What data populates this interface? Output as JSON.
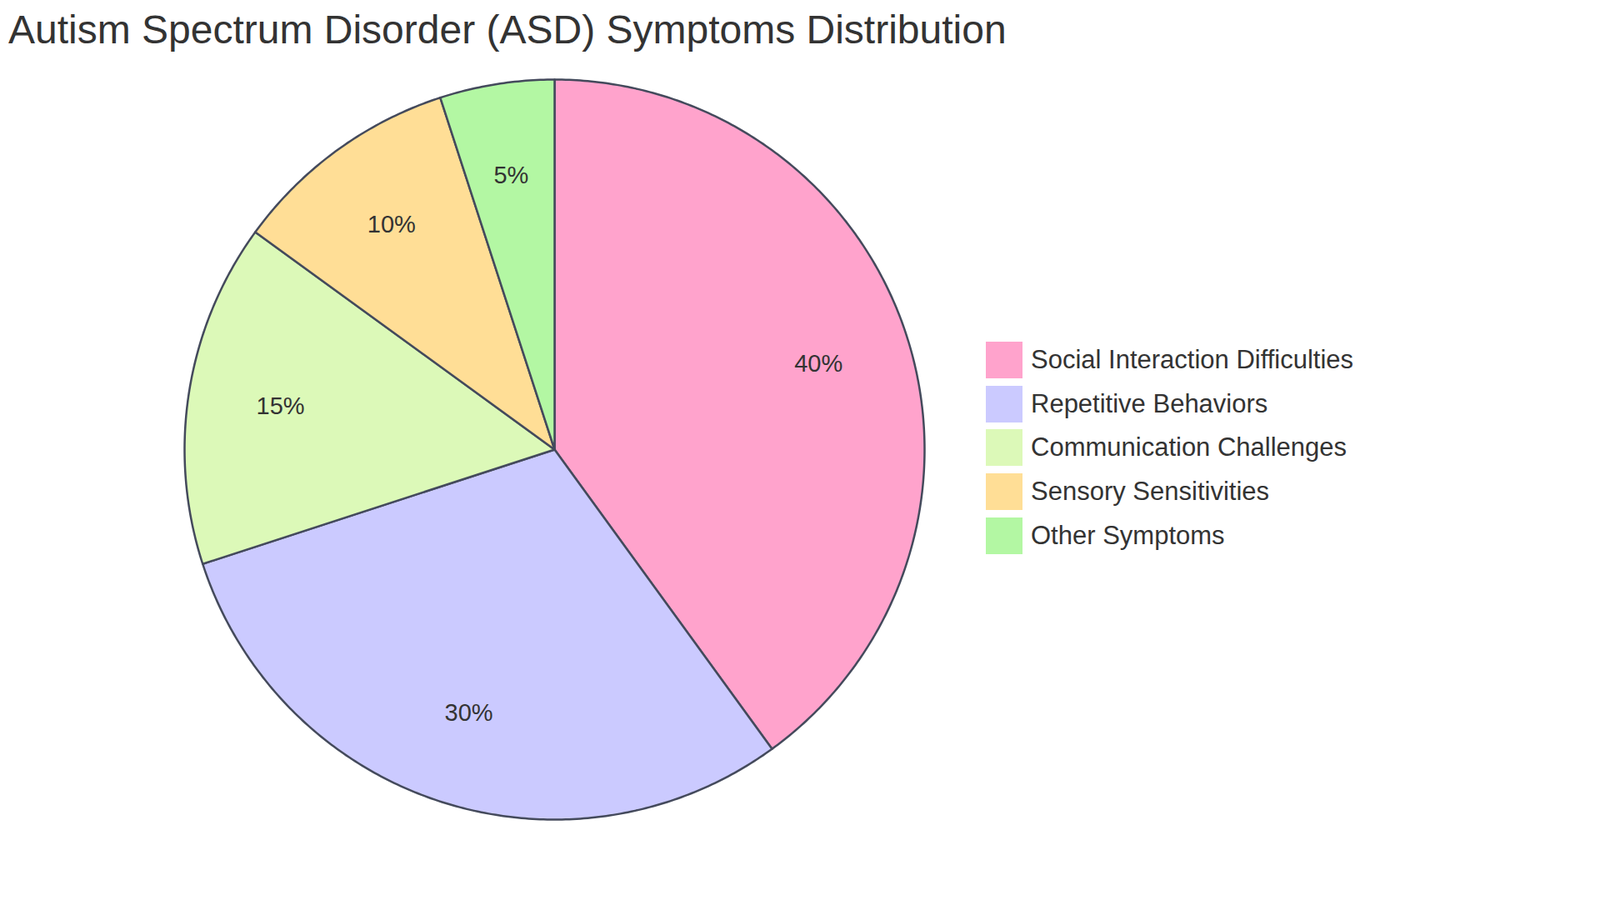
{
  "chart_data": {
    "type": "pie",
    "title": "Autism Spectrum Disorder (ASD) Symptoms Distribution",
    "categories": [
      "Social Interaction Difficulties",
      "Repetitive Behaviors",
      "Communication Challenges",
      "Sensory Sensitivities",
      "Other Symptoms"
    ],
    "values": [
      40,
      30,
      15,
      10,
      5
    ],
    "value_labels": [
      "40%",
      "30%",
      "15%",
      "10%",
      "5%"
    ],
    "colors": [
      "#ffa3cc",
      "#cbcaff",
      "#dcf9b8",
      "#ffde96",
      "#b3f7a3"
    ],
    "data_labels": true,
    "legend": "right"
  }
}
